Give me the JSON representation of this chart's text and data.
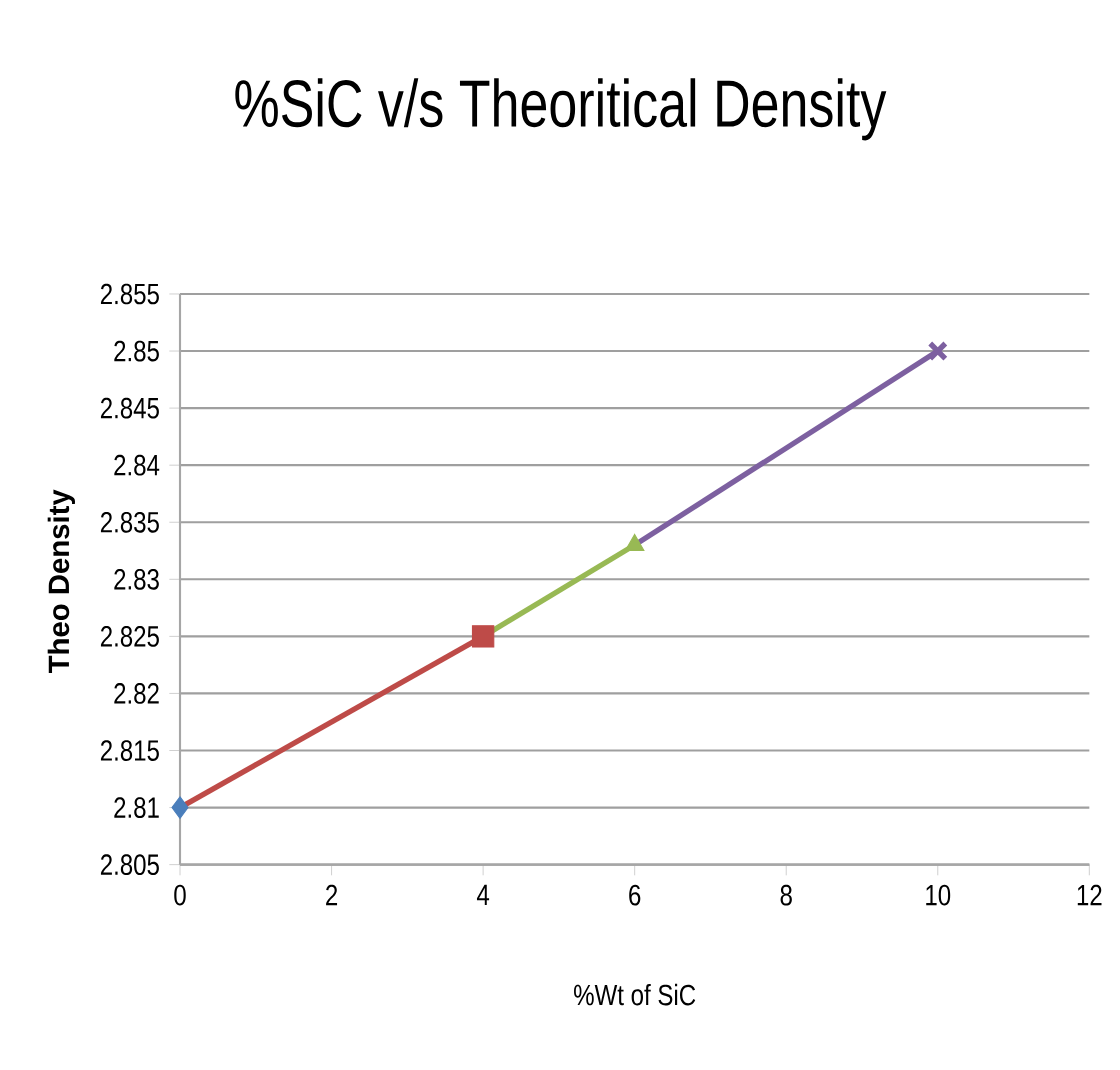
{
  "chart_data": {
    "type": "line",
    "title": "%SiC v/s Theoritical Density",
    "xlabel": "%Wt of SiC",
    "ylabel": "Theo Density",
    "xlim": [
      0,
      12
    ],
    "xticks": [
      0,
      2,
      4,
      6,
      8,
      10,
      12
    ],
    "ylim": [
      2.805,
      2.855
    ],
    "yticks": [
      2.805,
      2.81,
      2.815,
      2.82,
      2.825,
      2.83,
      2.835,
      2.84,
      2.845,
      2.85,
      2.855
    ],
    "grid": "y",
    "line_style": "solid",
    "series": [
      {
        "color": "#be4b48",
        "x": [
          0,
          4
        ],
        "values": [
          2.81,
          2.825
        ],
        "marker": "none"
      },
      {
        "color": "#98b954",
        "x": [
          4,
          6
        ],
        "values": [
          2.825,
          2.833
        ],
        "marker": "none"
      },
      {
        "color": "#7d60a0",
        "x": [
          6,
          10
        ],
        "values": [
          2.833,
          2.85
        ],
        "marker": "none"
      },
      {
        "type": "scatter",
        "color": "#4a7ebb",
        "x": [
          0
        ],
        "values": [
          2.81
        ],
        "marker": "diamond"
      },
      {
        "type": "scatter",
        "color": "#be4b48",
        "x": [
          4
        ],
        "values": [
          2.825
        ],
        "marker": "square"
      },
      {
        "type": "scatter",
        "color": "#98b954",
        "x": [
          6
        ],
        "values": [
          2.833
        ],
        "marker": "triangle"
      },
      {
        "type": "scatter",
        "color": "#7d60a0",
        "x": [
          10
        ],
        "values": [
          2.85
        ],
        "marker": "cross"
      }
    ]
  }
}
